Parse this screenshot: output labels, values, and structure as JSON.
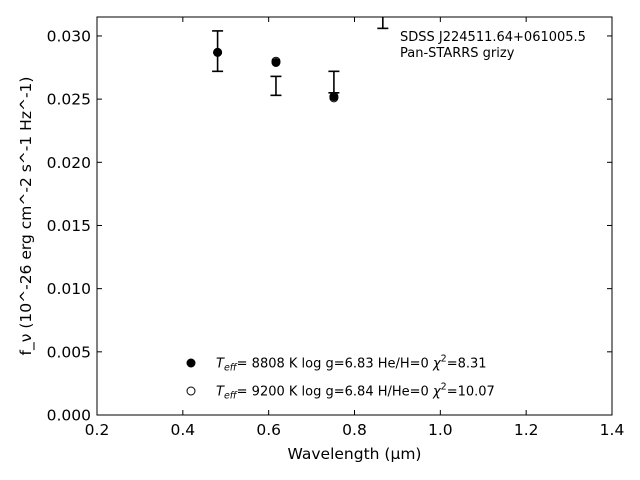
{
  "chart_data": {
    "type": "scatter",
    "xlabel": "Wavelength (μm)",
    "ylabel": "f_ν (10^-26 erg cm^-2 s^-1 Hz^-1)",
    "xlim": [
      0.2,
      1.4
    ],
    "ylim": [
      0.0,
      0.0315
    ],
    "x_ticks": [
      0.2,
      0.4,
      0.6,
      0.8,
      1.0,
      1.2,
      1.4
    ],
    "x_tick_labels": [
      "0.2",
      "0.4",
      "0.6",
      "0.8",
      "1.0",
      "1.2",
      "1.4"
    ],
    "y_ticks": [
      0.0,
      0.005,
      0.01,
      0.015,
      0.02,
      0.025,
      0.03
    ],
    "y_tick_labels": [
      "0.000",
      "0.005",
      "0.010",
      "0.015",
      "0.020",
      "0.025",
      "0.030"
    ],
    "grid": false,
    "annotation": {
      "line1": "SDSS J224511.64+061005.5",
      "line2": "Pan-STARRS grizy",
      "placement": "top-right"
    },
    "observed": {
      "marker": "errorbar",
      "points": [
        {
          "x": 0.481,
          "y": 0.0288,
          "yerr": 0.0016
        },
        {
          "x": 0.617,
          "y": 0.02605,
          "yerr": 0.00075
        },
        {
          "x": 0.752,
          "y": 0.02635,
          "yerr": 0.00085
        },
        {
          "x": 0.866,
          "y": 0.0315,
          "yerr": 0.0009
        }
      ]
    },
    "series": [
      {
        "marker": "filled-circle",
        "legend": {
          "teff_sym": "T",
          "teff_sub": "eff",
          "teff_eq": "=  8808 K  log g=6.83  He/H=0  ",
          "chi_sym": "χ",
          "chi_sup": "2",
          "chi_eq": "=8.31"
        },
        "points": [
          {
            "x": 0.481,
            "y": 0.0287
          },
          {
            "x": 0.617,
            "y": 0.0279
          },
          {
            "x": 0.752,
            "y": 0.0252
          }
        ]
      },
      {
        "marker": "open-circle",
        "legend": {
          "teff_sym": "T",
          "teff_sub": "eff",
          "teff_eq": "=  9200 K  log g=6.84  H/He=0  ",
          "chi_sym": "χ",
          "chi_sup": "2",
          "chi_eq": "=10.07"
        },
        "points": [
          {
            "x": 0.481,
            "y": 0.0287
          },
          {
            "x": 0.617,
            "y": 0.028
          },
          {
            "x": 0.752,
            "y": 0.0251
          }
        ]
      }
    ],
    "legend_placement": "bottom-center"
  }
}
